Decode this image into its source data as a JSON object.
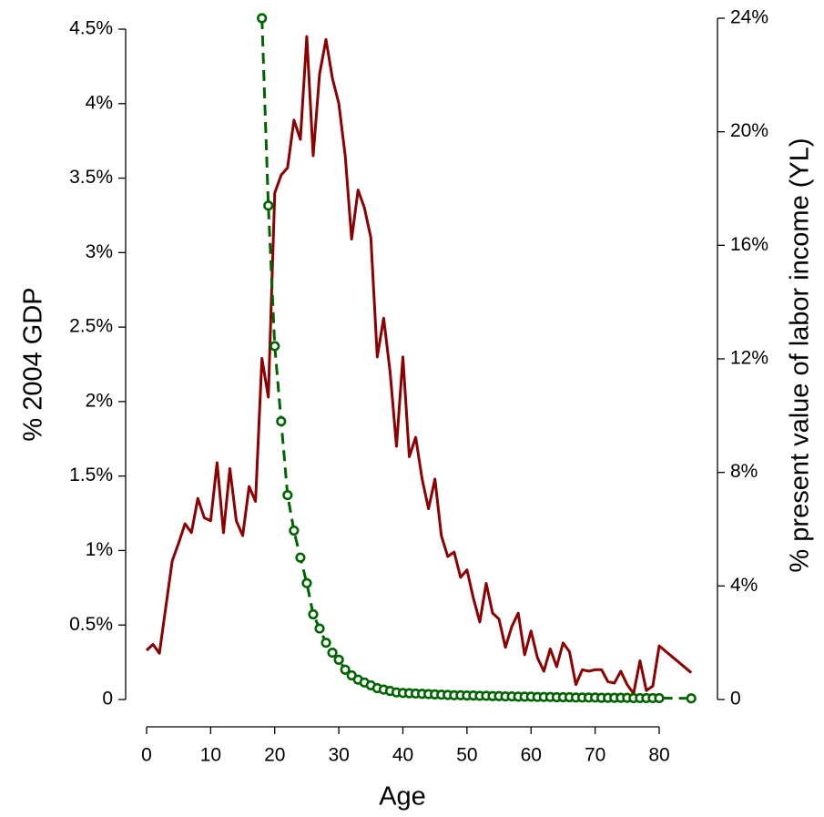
{
  "chart_data": {
    "type": "line",
    "xlabel": "Age",
    "ylabel": "% 2004 GDP",
    "y2label": "% present value of labor income (YL)",
    "x": [
      0,
      1,
      2,
      3,
      4,
      5,
      6,
      7,
      8,
      9,
      10,
      11,
      12,
      13,
      14,
      15,
      16,
      17,
      18,
      19,
      20,
      21,
      22,
      23,
      24,
      25,
      26,
      27,
      28,
      29,
      30,
      31,
      32,
      33,
      34,
      35,
      36,
      37,
      38,
      39,
      40,
      41,
      42,
      43,
      44,
      45,
      46,
      47,
      48,
      49,
      50,
      51,
      52,
      53,
      54,
      55,
      56,
      57,
      58,
      59,
      60,
      61,
      62,
      63,
      64,
      65,
      66,
      67,
      68,
      69,
      70,
      71,
      72,
      73,
      74,
      75,
      76,
      77,
      78,
      79,
      80,
      85
    ],
    "series": [
      {
        "color": "#8b0000",
        "axis": "y",
        "style": "solid",
        "values": [
          0.33,
          0.37,
          0.31,
          0.62,
          0.93,
          1.05,
          1.18,
          1.12,
          1.35,
          1.22,
          1.2,
          1.59,
          1.12,
          1.55,
          1.2,
          1.1,
          1.43,
          1.33,
          2.29,
          2.03,
          3.4,
          3.52,
          3.57,
          3.89,
          3.76,
          4.45,
          3.65,
          4.2,
          4.43,
          4.17,
          4.0,
          3.65,
          3.09,
          3.42,
          3.3,
          3.1,
          2.3,
          2.56,
          2.2,
          1.7,
          2.3,
          1.63,
          1.76,
          1.48,
          1.28,
          1.48,
          1.1,
          0.96,
          0.99,
          0.82,
          0.87,
          0.68,
          0.52,
          0.78,
          0.58,
          0.54,
          0.35,
          0.49,
          0.58,
          0.3,
          0.46,
          0.28,
          0.19,
          0.34,
          0.22,
          0.38,
          0.32,
          0.1,
          0.2,
          0.19,
          0.2,
          0.2,
          0.12,
          0.11,
          0.19,
          0.1,
          0.04,
          0.26,
          0.06,
          0.09,
          0.36,
          0.18
        ]
      },
      {
        "color": "#006400",
        "axis": "y2",
        "style": "dashed",
        "markers": true,
        "values": [
          null,
          null,
          null,
          null,
          null,
          null,
          null,
          null,
          null,
          null,
          null,
          null,
          null,
          null,
          null,
          null,
          null,
          null,
          24,
          17.4,
          12.45,
          9.8,
          7.2,
          5.95,
          5.0,
          4.1,
          3.0,
          2.5,
          2.0,
          1.65,
          1.4,
          1.05,
          0.85,
          0.7,
          0.6,
          0.5,
          0.4,
          0.35,
          0.3,
          0.25,
          0.23,
          0.22,
          0.21,
          0.2,
          0.19,
          0.18,
          0.17,
          0.16,
          0.15,
          0.15,
          0.14,
          0.14,
          0.13,
          0.13,
          0.12,
          0.12,
          0.11,
          0.11,
          0.1,
          0.1,
          0.1,
          0.09,
          0.09,
          0.09,
          0.08,
          0.08,
          0.08,
          0.07,
          0.07,
          0.07,
          0.07,
          0.06,
          0.06,
          0.06,
          0.06,
          0.06,
          0.05,
          0.05,
          0.05,
          0.05,
          0.05,
          0.04
        ]
      }
    ],
    "xlim": [
      0,
      85
    ],
    "xticks": [
      0,
      10,
      20,
      30,
      40,
      50,
      60,
      70,
      80
    ],
    "ylim": [
      0,
      4.5
    ],
    "yticks": [
      0,
      {
        "value": 0.5,
        "label": "0.5%"
      },
      {
        "value": 1,
        "label": "1%"
      },
      {
        "value": 1.5,
        "label": "1.5%"
      },
      {
        "value": 2,
        "label": "2%"
      },
      {
        "value": 2.5,
        "label": "2.5%"
      },
      {
        "value": 3,
        "label": "3%"
      },
      {
        "value": 3.5,
        "label": "3.5%"
      },
      {
        "value": 4,
        "label": "4%"
      },
      {
        "value": 4.5,
        "label": "4.5%"
      }
    ],
    "y2lim": [
      0,
      24
    ],
    "y2ticks": [
      0,
      {
        "value": 4,
        "label": "4%"
      },
      {
        "value": 8,
        "label": "8%"
      },
      {
        "value": 12,
        "label": "12%"
      },
      {
        "value": 16,
        "label": "16%"
      },
      {
        "value": 20,
        "label": "20%"
      },
      {
        "value": 24,
        "label": "24%"
      }
    ],
    "grid": false
  }
}
